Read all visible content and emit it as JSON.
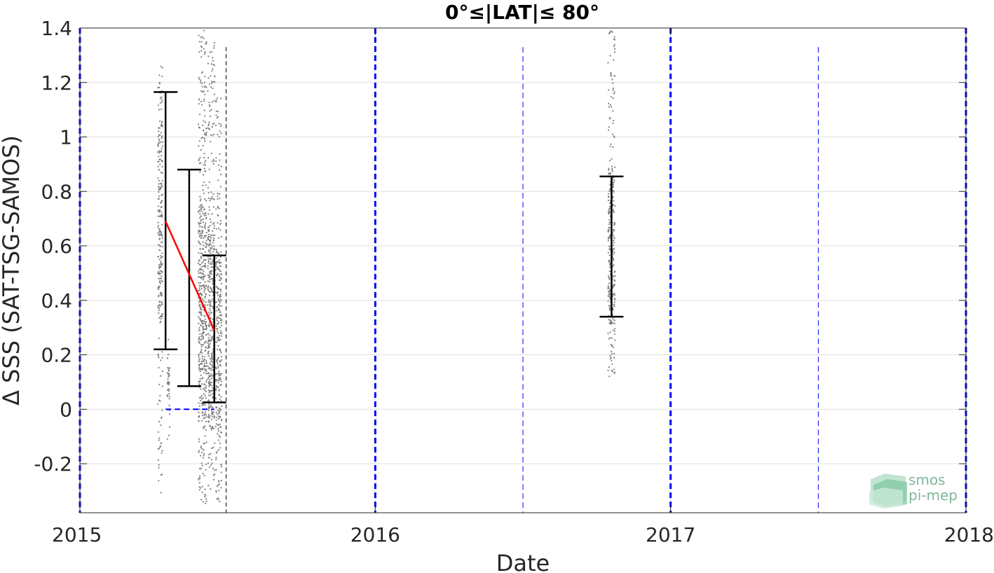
{
  "chart_data": {
    "type": "scatter",
    "title": "0°≤|LAT|≤ 80°",
    "xlabel": "Date",
    "ylabel": "Δ SSS (SAT-TSG-SAMOS)",
    "xlim": [
      2015.0,
      2018.0
    ],
    "ylim": [
      -0.38,
      1.4
    ],
    "x_ticks": [
      {
        "value": 2015,
        "label": "2015"
      },
      {
        "value": 2016,
        "label": "2016"
      },
      {
        "value": 2017,
        "label": "2017"
      },
      {
        "value": 2018,
        "label": "2018"
      }
    ],
    "y_ticks": [
      {
        "value": -0.2,
        "label": "-0.2"
      },
      {
        "value": 0,
        "label": "0"
      },
      {
        "value": 0.2,
        "label": "0.2"
      },
      {
        "value": 0.4,
        "label": "0.4"
      },
      {
        "value": 0.6,
        "label": "0.6"
      },
      {
        "value": 0.8,
        "label": "0.8"
      },
      {
        "value": 1.0,
        "label": "1"
      },
      {
        "value": 1.2,
        "label": "1.2"
      },
      {
        "value": 1.4,
        "label": "1.4"
      }
    ],
    "grid": true,
    "scatter_clusters": [
      {
        "x": 2015.272,
        "x_spread": 0.008,
        "y_min": -0.33,
        "y_max": 1.33,
        "center": 0.69,
        "n": 260
      },
      {
        "x": 2015.3,
        "x_spread": 0.004,
        "y_min": -0.12,
        "y_max": 0.27,
        "center": 0.07,
        "n": 40
      },
      {
        "x": 2015.415,
        "x_spread": 0.014,
        "y_min": -0.36,
        "y_max": 1.4,
        "center": 0.35,
        "n": 520
      },
      {
        "x": 2015.445,
        "x_spread": 0.012,
        "y_min": -0.3,
        "y_max": 1.35,
        "center": 0.3,
        "n": 420
      },
      {
        "x": 2015.47,
        "x_spread": 0.01,
        "y_min": -0.34,
        "y_max": 1.16,
        "center": 0.25,
        "n": 300
      },
      {
        "x": 2016.8,
        "x_spread": 0.012,
        "y_min": 0.11,
        "y_max": 1.4,
        "center": 0.6,
        "n": 320
      }
    ],
    "error_bars": [
      {
        "x": 2015.29,
        "mean": 0.69,
        "low": 0.22,
        "high": 1.165
      },
      {
        "x": 2015.37,
        "mean": 0.48,
        "low": 0.085,
        "high": 0.88
      },
      {
        "x": 2015.455,
        "mean": 0.29,
        "low": 0.025,
        "high": 0.565
      },
      {
        "x": 2016.8,
        "mean": 0.6,
        "low": 0.34,
        "high": 0.855
      }
    ],
    "trend_line": {
      "color": "#ff0000",
      "points": [
        [
          2015.29,
          0.69
        ],
        [
          2015.455,
          0.29
        ]
      ]
    },
    "zero_reference": {
      "color": "#0000ff",
      "x_start": 2015.29,
      "x_end": 2015.455,
      "y": 0
    },
    "vertical_lines": {
      "year_boundaries": {
        "color": "#0000ff",
        "style": "thick-dashed",
        "x": [
          2015,
          2016,
          2017,
          2018
        ]
      },
      "half_years": {
        "color": "#0000ff",
        "style": "thin-dashed",
        "x": [
          2016.5,
          2017.5
        ]
      },
      "data_end": {
        "color": "#000000",
        "style": "thin-dashed",
        "x": [
          2015.495
        ]
      }
    },
    "colors": {
      "points": "#7f7f7f",
      "error_bars": "#000000",
      "grid": "#e0e0e0"
    }
  },
  "logo": {
    "line1": "smos",
    "line2": "pi-mep"
  }
}
